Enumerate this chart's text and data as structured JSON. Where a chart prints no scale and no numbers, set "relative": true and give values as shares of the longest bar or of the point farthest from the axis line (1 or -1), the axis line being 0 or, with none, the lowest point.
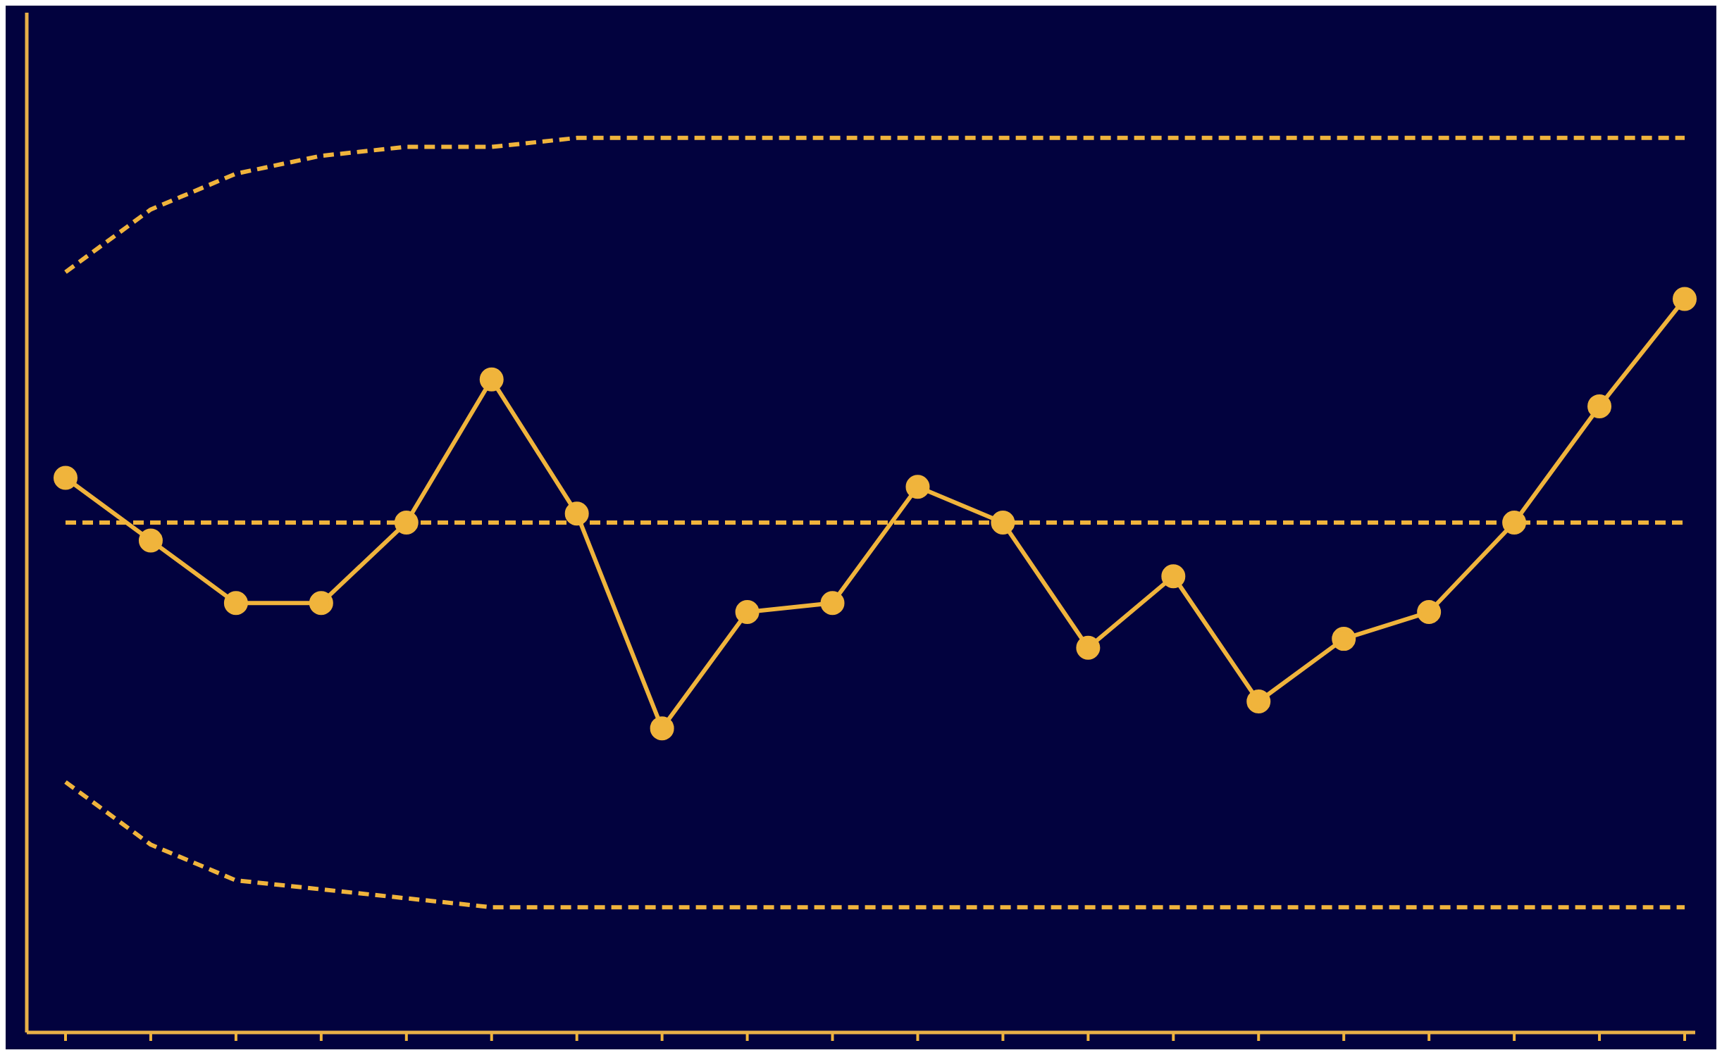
{
  "chart_data": {
    "type": "line",
    "relative": true,
    "categories": [
      null,
      null,
      null,
      null,
      null,
      null,
      null,
      null,
      null,
      null,
      null,
      null,
      null,
      null,
      null,
      null,
      null,
      null,
      null,
      null
    ],
    "grid": false,
    "legend": false,
    "tick_labels": false,
    "ref_lines": [
      {
        "axis": "y",
        "value": 0,
        "color": "#e8b048",
        "line_style": "solid"
      }
    ],
    "series": [
      {
        "color": "#f0b43c",
        "marker": "circle",
        "line_style": "solid",
        "values": [
          0.62,
          0.55,
          0.48,
          0.48,
          0.57,
          0.73,
          0.58,
          0.34,
          0.47,
          0.48,
          0.61,
          0.57,
          0.43,
          0.51,
          0.37,
          0.44,
          0.47,
          0.57,
          0.7,
          0.82
        ]
      },
      {
        "color": "#f0b43c",
        "marker": "none",
        "line_style": "dashed",
        "values": [
          0.85,
          0.92,
          0.96,
          0.98,
          0.99,
          0.99,
          1,
          1,
          1,
          1,
          1,
          1,
          1,
          1,
          1,
          1,
          1,
          1,
          1,
          1
        ]
      },
      {
        "color": "#f0b43c",
        "marker": "none",
        "line_style": "dashed",
        "values": [
          0.57,
          0.57,
          0.57,
          0.57,
          0.57,
          0.57,
          0.57,
          0.57,
          0.57,
          0.57,
          0.57,
          0.57,
          0.57,
          0.57,
          0.57,
          0.57,
          0.57,
          0.57,
          0.57,
          0.57
        ]
      },
      {
        "color": "#f0b43c",
        "marker": "none",
        "line_style": "dashed",
        "values": [
          0.28,
          0.21,
          0.17,
          0.16,
          0.15,
          0.14,
          0.14,
          0.14,
          0.14,
          0.14,
          0.14,
          0.14,
          0.14,
          0.14,
          0.14,
          0.14,
          0.14,
          0.14,
          0.14,
          0.14
        ]
      }
    ]
  }
}
